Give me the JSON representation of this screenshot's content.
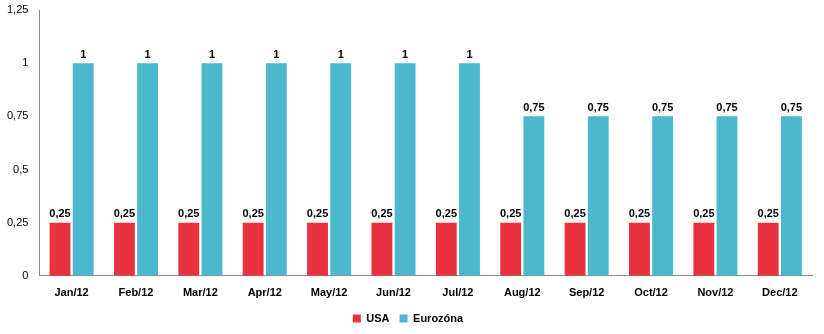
{
  "chart_data": {
    "type": "bar",
    "categories": [
      "Jan/12",
      "Feb/12",
      "Mar/12",
      "Apr/12",
      "May/12",
      "Jun/12",
      "Jul/12",
      "Aug/12",
      "Sep/12",
      "Oct/12",
      "Nov/12",
      "Dec/12"
    ],
    "series": [
      {
        "name": "USA",
        "color": "#e8323f",
        "values": [
          0.25,
          0.25,
          0.25,
          0.25,
          0.25,
          0.25,
          0.25,
          0.25,
          0.25,
          0.25,
          0.25,
          0.25
        ],
        "value_labels": [
          "0,25",
          "0,25",
          "0,25",
          "0,25",
          "0,25",
          "0,25",
          "0,25",
          "0,25",
          "0,25",
          "0,25",
          "0,25",
          "0,25"
        ]
      },
      {
        "name": "Eurozóna",
        "color": "#4bb8cc",
        "values": [
          1,
          1,
          1,
          1,
          1,
          1,
          1,
          0.75,
          0.75,
          0.75,
          0.75,
          0.75
        ],
        "value_labels": [
          "1",
          "1",
          "1",
          "1",
          "1",
          "1",
          "1",
          "0,75",
          "0,75",
          "0,75",
          "0,75",
          "0,75"
        ]
      }
    ],
    "ylim": [
      0,
      1.25
    ],
    "yticks": [
      0,
      {
        "value": 0.25,
        "label": "0,25"
      },
      {
        "value": 0.5,
        "label": "0,5"
      },
      {
        "value": 0.75,
        "label": "0,75"
      },
      1,
      {
        "value": 1.25,
        "label": "1,25"
      }
    ],
    "grid": false,
    "legend": "bottom",
    "data_labels": true
  }
}
